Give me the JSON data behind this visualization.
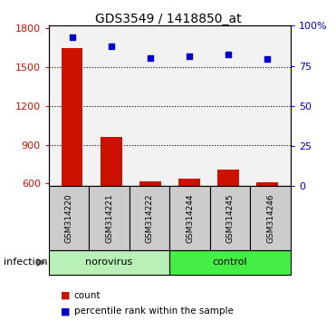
{
  "title": "GDS3549 / 1418850_at",
  "samples": [
    "GSM314220",
    "GSM314221",
    "GSM314222",
    "GSM314244",
    "GSM314245",
    "GSM314246"
  ],
  "counts": [
    1650,
    960,
    615,
    640,
    710,
    610
  ],
  "percentiles": [
    93,
    87,
    80,
    81,
    82,
    79
  ],
  "groups": [
    "norovirus",
    "norovirus",
    "norovirus",
    "control",
    "control",
    "control"
  ],
  "group_labels": [
    "norovirus",
    "control"
  ],
  "norovirus_color": "#b8f0b8",
  "control_color": "#44ee44",
  "sample_box_color": "#cccccc",
  "bar_color": "#cc1100",
  "dot_color": "#0000cc",
  "ylim_left": [
    580,
    1820
  ],
  "ylim_right": [
    0,
    100
  ],
  "yticks_left": [
    600,
    900,
    1200,
    1500,
    1800
  ],
  "yticks_right": [
    0,
    25,
    50,
    75,
    100
  ],
  "ytick_labels_right": [
    "0",
    "25",
    "50",
    "75",
    "100%"
  ],
  "grid_values": [
    900,
    1200,
    1500
  ],
  "bg_color": "#ffffff",
  "bar_width": 0.55,
  "infection_label": "infection",
  "legend_count_label": "count",
  "legend_pct_label": "percentile rank within the sample",
  "arrow_color": "#888888"
}
